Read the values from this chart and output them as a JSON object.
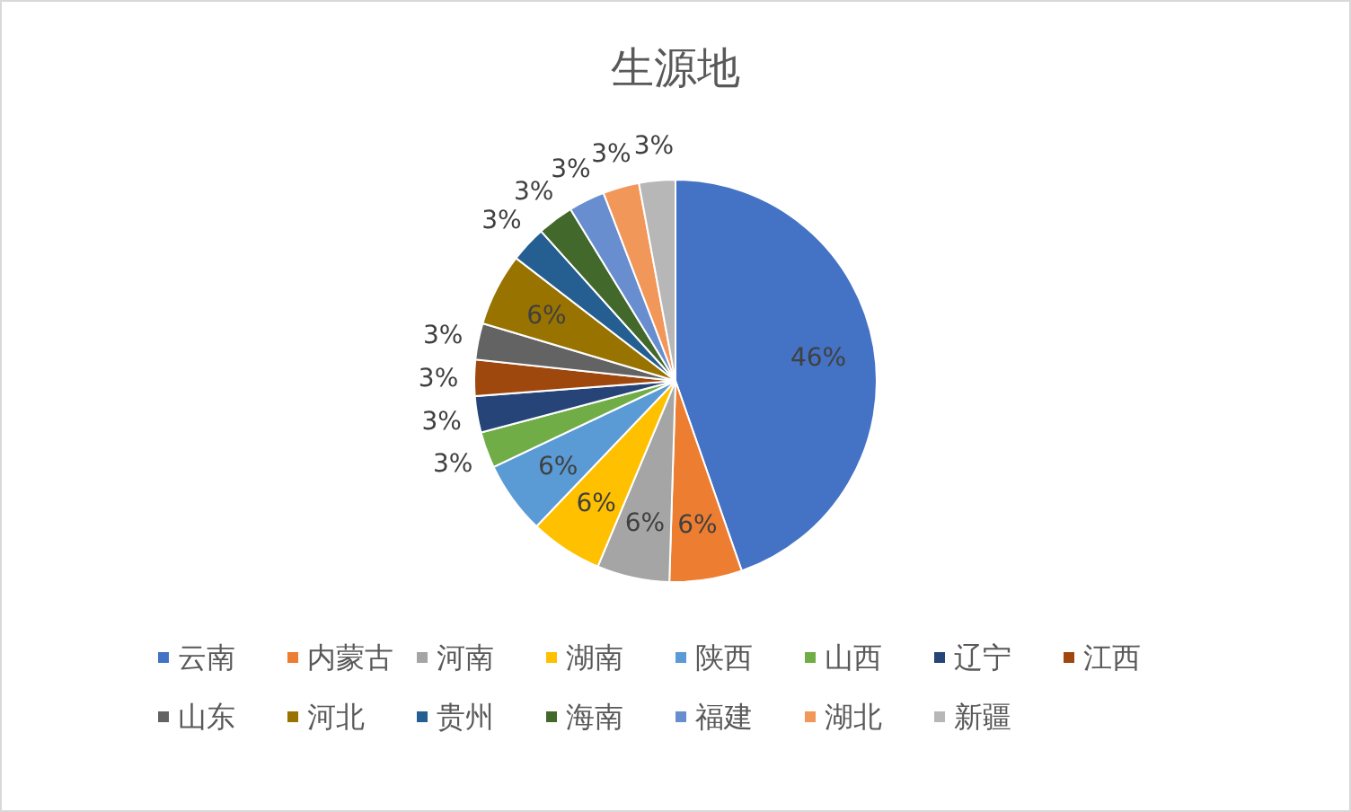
{
  "chart_data": {
    "type": "pie",
    "title": "生源地",
    "categories": [
      "云南",
      "内蒙古",
      "河南",
      "湖南",
      "陕西",
      "山西",
      "辽宁",
      "江西",
      "山东",
      "河北",
      "贵州",
      "海南",
      "福建",
      "湖北",
      "新疆"
    ],
    "values": [
      46,
      6,
      6,
      6,
      6,
      3,
      3,
      3,
      3,
      6,
      3,
      3,
      3,
      3,
      3
    ],
    "value_labels": [
      "46%",
      "6%",
      "6%",
      "6%",
      "6%",
      "3%",
      "3%",
      "3%",
      "3%",
      "6%",
      "3%",
      "3%",
      "3%",
      "3%",
      "3%"
    ],
    "colors": [
      "#4472c4",
      "#ed7d31",
      "#a5a5a5",
      "#ffc000",
      "#5b9bd5",
      "#70ad47",
      "#264478",
      "#9e480e",
      "#636363",
      "#997300",
      "#255e91",
      "#43682b",
      "#698ed0",
      "#f1975a",
      "#b7b7b7"
    ],
    "legend": "bottom"
  }
}
